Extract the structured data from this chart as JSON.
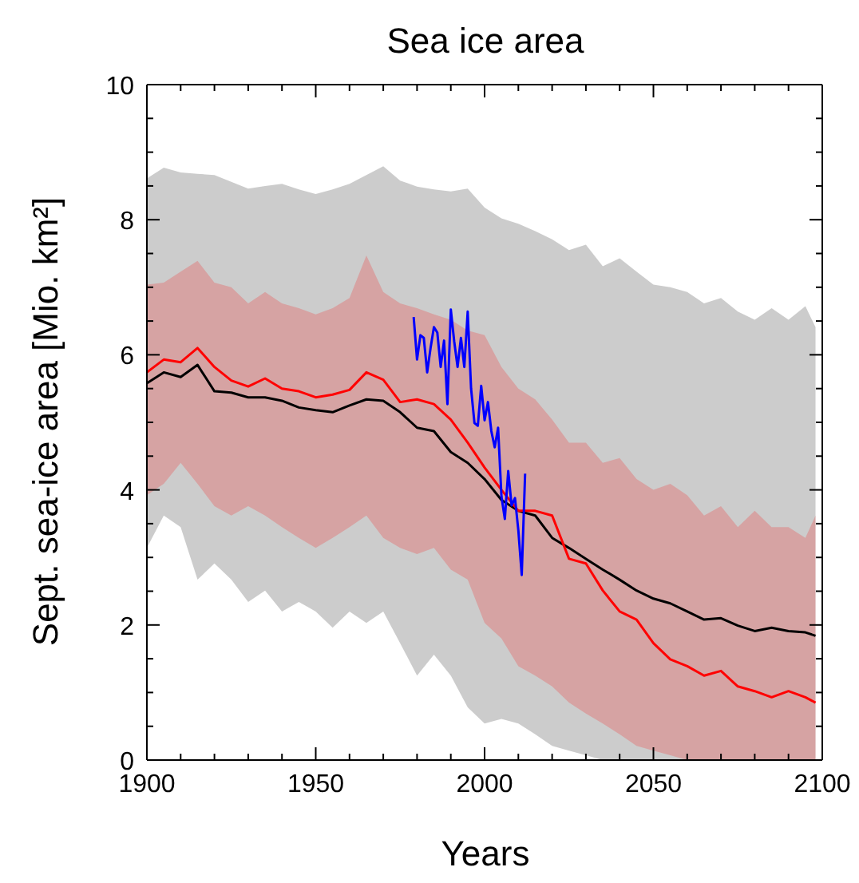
{
  "chart_data": {
    "type": "line",
    "title": "Sea ice area",
    "xlabel": "Years",
    "ylabel": "Sept. sea-ice area [Mio. km²]",
    "xlim": [
      1900,
      2100
    ],
    "xticks": [
      1900,
      {
        "value": 1910,
        "label": null
      },
      {
        "value": 1920,
        "label": null
      },
      {
        "value": 1930,
        "label": null
      },
      {
        "value": 1940,
        "label": null
      },
      1950,
      {
        "value": 1960,
        "label": null
      },
      {
        "value": 1970,
        "label": null
      },
      {
        "value": 1980,
        "label": null
      },
      {
        "value": 1990,
        "label": null
      },
      2000,
      {
        "value": 2010,
        "label": null
      },
      {
        "value": 2020,
        "label": null
      },
      {
        "value": 2030,
        "label": null
      },
      {
        "value": 2040,
        "label": null
      },
      2050,
      {
        "value": 2060,
        "label": null
      },
      {
        "value": 2070,
        "label": null
      },
      {
        "value": 2080,
        "label": null
      },
      {
        "value": 2090,
        "label": null
      },
      2100
    ],
    "ylim": [
      0,
      10
    ],
    "yticks": [
      0,
      {
        "value": 0.5,
        "label": null
      },
      {
        "value": 1,
        "label": null
      },
      {
        "value": 1.5,
        "label": null
      },
      2,
      {
        "value": 2.5,
        "label": null
      },
      {
        "value": 3,
        "label": null
      },
      {
        "value": 3.5,
        "label": null
      },
      4,
      {
        "value": 4.5,
        "label": null
      },
      {
        "value": 5,
        "label": null
      },
      {
        "value": 5.5,
        "label": null
      },
      6,
      {
        "value": 6.5,
        "label": null
      },
      {
        "value": 7,
        "label": null
      },
      {
        "value": 7.5,
        "label": null
      },
      8,
      {
        "value": 8.5,
        "label": null
      },
      {
        "value": 9,
        "label": null
      },
      {
        "value": 9.5,
        "label": null
      },
      10
    ],
    "legend": false,
    "line_style": "solid",
    "marker": "none",
    "series": [
      {
        "color": "#000000",
        "x": [
          1900,
          1905,
          1910,
          1915,
          1920,
          1925,
          1930,
          1935,
          1940,
          1945,
          1950,
          1955,
          1960,
          1965,
          1970,
          1975,
          1980,
          1985,
          1990,
          1995,
          2000,
          2005,
          2010,
          2015,
          2020,
          2025,
          2030,
          2035,
          2040,
          2045,
          2050,
          2055,
          2060,
          2065,
          2070,
          2075,
          2080,
          2085,
          2090,
          2095,
          2098
        ],
        "values": [
          5.58,
          5.74,
          5.67,
          5.85,
          5.46,
          5.44,
          5.37,
          5.37,
          5.32,
          5.22,
          5.18,
          5.15,
          5.25,
          5.34,
          5.32,
          5.15,
          4.92,
          4.87,
          4.56,
          4.4,
          4.16,
          3.85,
          3.69,
          3.62,
          3.29,
          3.14,
          2.98,
          2.82,
          2.67,
          2.51,
          2.39,
          2.32,
          2.2,
          2.08,
          2.1,
          1.99,
          1.91,
          1.96,
          1.91,
          1.89,
          1.84
        ],
        "lower": [
          3.14,
          3.62,
          3.45,
          2.67,
          2.91,
          2.67,
          2.34,
          2.51,
          2.2,
          2.34,
          2.2,
          1.96,
          2.2,
          2.03,
          2.2,
          1.73,
          1.25,
          1.56,
          1.25,
          0.78,
          0.54,
          0.61,
          0.54,
          0.38,
          0.21,
          0.14,
          0.07,
          0,
          0,
          0,
          0,
          0,
          0,
          0,
          0,
          0,
          0,
          0,
          0,
          0,
          0
        ],
        "upper": [
          8.61,
          8.77,
          8.7,
          8.68,
          8.66,
          8.56,
          8.46,
          8.5,
          8.53,
          8.45,
          8.38,
          8.45,
          8.53,
          8.66,
          8.79,
          8.58,
          8.49,
          8.45,
          8.42,
          8.46,
          8.18,
          8.02,
          7.94,
          7.83,
          7.71,
          7.55,
          7.63,
          7.31,
          7.43,
          7.23,
          7.04,
          7.0,
          6.93,
          6.76,
          6.84,
          6.64,
          6.52,
          6.69,
          6.52,
          6.72,
          6.41
        ]
      },
      {
        "color": "#ff0000",
        "x": [
          1900,
          1905,
          1910,
          1915,
          1920,
          1925,
          1930,
          1935,
          1940,
          1945,
          1950,
          1955,
          1960,
          1965,
          1970,
          1975,
          1980,
          1985,
          1990,
          1995,
          2000,
          2005,
          2010,
          2015,
          2020,
          2025,
          2030,
          2035,
          2040,
          2045,
          2050,
          2055,
          2060,
          2065,
          2070,
          2075,
          2080,
          2085,
          2090,
          2095,
          2098
        ],
        "values": [
          5.74,
          5.93,
          5.89,
          6.1,
          5.82,
          5.62,
          5.53,
          5.65,
          5.5,
          5.46,
          5.37,
          5.41,
          5.48,
          5.74,
          5.63,
          5.3,
          5.34,
          5.27,
          5.04,
          4.7,
          4.33,
          4.0,
          3.69,
          3.69,
          3.62,
          2.98,
          2.91,
          2.51,
          2.2,
          2.08,
          1.73,
          1.49,
          1.39,
          1.25,
          1.32,
          1.09,
          1.02,
          0.93,
          1.02,
          0.93,
          0.85
        ],
        "lower": [
          3.92,
          4.09,
          4.4,
          4.09,
          3.76,
          3.62,
          3.76,
          3.62,
          3.45,
          3.29,
          3.14,
          3.29,
          3.45,
          3.62,
          3.29,
          3.14,
          3.05,
          3.14,
          2.82,
          2.67,
          2.03,
          1.8,
          1.39,
          1.25,
          1.09,
          0.85,
          0.69,
          0.54,
          0.38,
          0.21,
          0.14,
          0.07,
          0,
          0,
          0,
          0,
          0,
          0,
          0,
          0,
          0
        ],
        "upper": [
          7.04,
          7.07,
          7.23,
          7.39,
          7.07,
          7.0,
          6.76,
          6.93,
          6.76,
          6.69,
          6.6,
          6.69,
          6.84,
          7.47,
          6.93,
          6.76,
          6.69,
          6.6,
          6.52,
          6.36,
          6.29,
          5.82,
          5.5,
          5.34,
          5.04,
          4.7,
          4.7,
          4.4,
          4.47,
          4.16,
          4.0,
          4.09,
          3.92,
          3.62,
          3.76,
          3.45,
          3.69,
          3.45,
          3.45,
          3.29,
          3.62
        ]
      },
      {
        "color": "#0000ff",
        "x": [
          1979,
          1980,
          1981,
          1982,
          1983,
          1984,
          1985,
          1986,
          1987,
          1988,
          1989,
          1990,
          1991,
          1992,
          1993,
          1994,
          1995,
          1996,
          1997,
          1998,
          1999,
          2000,
          2001,
          2002,
          2003,
          2004,
          2005,
          2006,
          2007,
          2008,
          2009,
          2010,
          2011,
          2012
        ],
        "values": [
          6.56,
          5.93,
          6.29,
          6.25,
          5.74,
          6.1,
          6.41,
          6.33,
          5.82,
          6.21,
          5.27,
          6.67,
          6.2,
          5.82,
          6.25,
          5.82,
          6.64,
          5.5,
          4.99,
          4.95,
          5.54,
          5.03,
          5.3,
          4.87,
          4.63,
          4.92,
          3.9,
          3.57,
          4.28,
          3.77,
          3.88,
          3.4,
          2.74,
          4.24
        ]
      }
    ]
  }
}
